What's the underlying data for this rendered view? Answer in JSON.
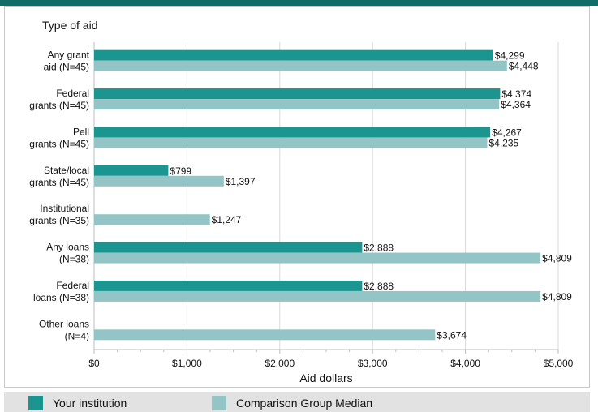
{
  "chart_data": {
    "type": "bar",
    "orientation": "horizontal",
    "yaxis_title": "Type of aid",
    "xlabel": "Aid dollars",
    "xlim": [
      0,
      5000
    ],
    "xticks": [
      0,
      1000,
      2000,
      3000,
      4000,
      5000
    ],
    "xtick_labels": [
      "$0",
      "$1,000",
      "$2,000",
      "$3,000",
      "$4,000",
      "$5,000"
    ],
    "grid": true,
    "legend_position": "bottom",
    "categories": [
      [
        "Any grant",
        "aid (N=45)"
      ],
      [
        "Federal",
        "grants (N=45)"
      ],
      [
        "Pell",
        "grants (N=45)"
      ],
      [
        "State/local",
        "grants (N=45)"
      ],
      [
        "Institutional",
        "grants (N=35)"
      ],
      [
        "Any loans",
        "(N=38)"
      ],
      [
        "Federal",
        "loans (N=38)"
      ],
      [
        "Other loans",
        "(N=4)"
      ]
    ],
    "series": [
      {
        "name": "Your institution",
        "color": "#1a9590",
        "values": [
          4299,
          4374,
          4267,
          799,
          null,
          2888,
          2888,
          null
        ],
        "labels": [
          "$4,299",
          "$4,374",
          "$4,267",
          "$799",
          "",
          "$2,888",
          "$2,888",
          ""
        ]
      },
      {
        "name": "Comparison Group Median",
        "color": "#93c5c6",
        "values": [
          4448,
          4364,
          4235,
          1397,
          1247,
          4809,
          4809,
          3674
        ],
        "labels": [
          "$4,448",
          "$4,364",
          "$4,235",
          "$1,397",
          "$1,247",
          "$4,809",
          "$4,809",
          "$3,674"
        ]
      }
    ]
  }
}
